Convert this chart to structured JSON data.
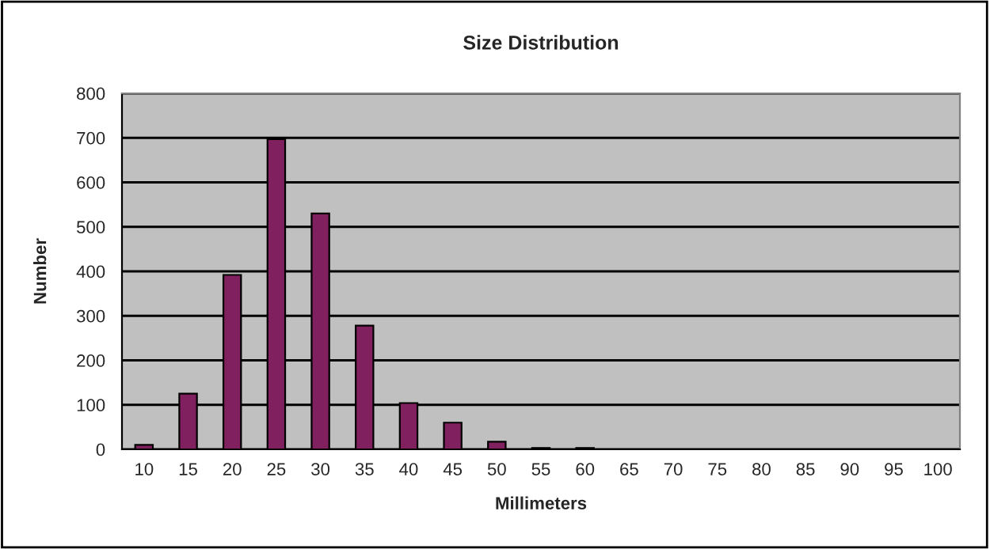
{
  "chart_data": {
    "type": "bar",
    "title": "Size Distribution",
    "xlabel": "Millimeters",
    "ylabel": "Number",
    "categories": [
      "10",
      "15",
      "20",
      "25",
      "30",
      "35",
      "40",
      "45",
      "50",
      "55",
      "60",
      "65",
      "70",
      "75",
      "80",
      "85",
      "90",
      "95",
      "100"
    ],
    "series": [
      {
        "color": "#80205f",
        "values": [
          10,
          125,
          392,
          697,
          530,
          278,
          104,
          60,
          17,
          3,
          3,
          0,
          0,
          0,
          0,
          0,
          0,
          0,
          0
        ]
      }
    ],
    "ylim": [
      0,
      800
    ],
    "yticks": [
      0,
      100,
      200,
      300,
      400,
      500,
      600,
      700,
      800
    ],
    "grid": "y",
    "legend": false
  }
}
